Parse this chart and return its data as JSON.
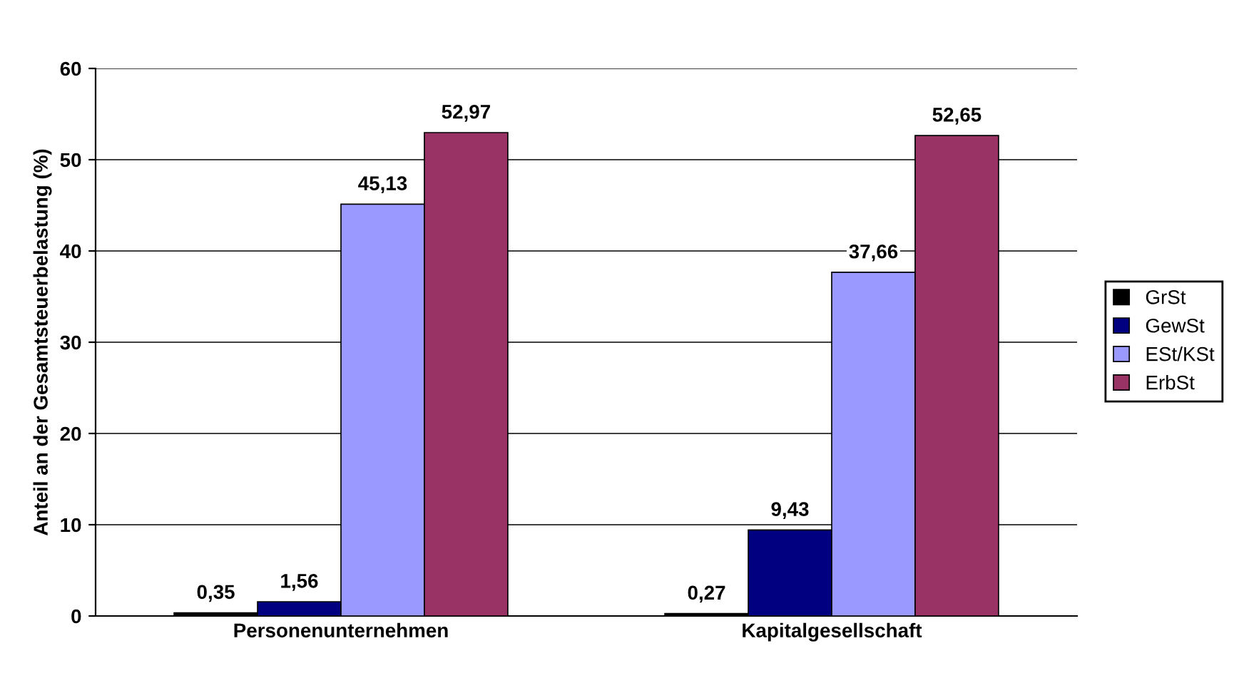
{
  "chart_data": {
    "type": "bar",
    "ylabel": "Anteil an der Gesamtsteuerbelastung (%)",
    "categories": [
      "Personenunternehmen",
      "Kapitalgesellschaft"
    ],
    "series": [
      {
        "name": "GrSt",
        "color": "#000000",
        "values": [
          0.35,
          0.27
        ],
        "value_labels": [
          "0,35",
          "0,27"
        ]
      },
      {
        "name": "GewSt",
        "color": "#000080",
        "values": [
          1.56,
          9.43
        ],
        "value_labels": [
          "1,56",
          "9,43"
        ]
      },
      {
        "name": "ESt/KSt",
        "color": "#9999ff",
        "values": [
          45.13,
          37.66
        ],
        "value_labels": [
          "45,13",
          "37,66"
        ]
      },
      {
        "name": "ErbSt",
        "color": "#993366",
        "values": [
          52.97,
          52.65
        ],
        "value_labels": [
          "52,97",
          "52,65"
        ]
      }
    ],
    "ylim": [
      0,
      60
    ],
    "yticks": [
      0,
      10,
      20,
      30,
      40,
      50,
      60
    ],
    "grid": "y",
    "legend": "right"
  }
}
